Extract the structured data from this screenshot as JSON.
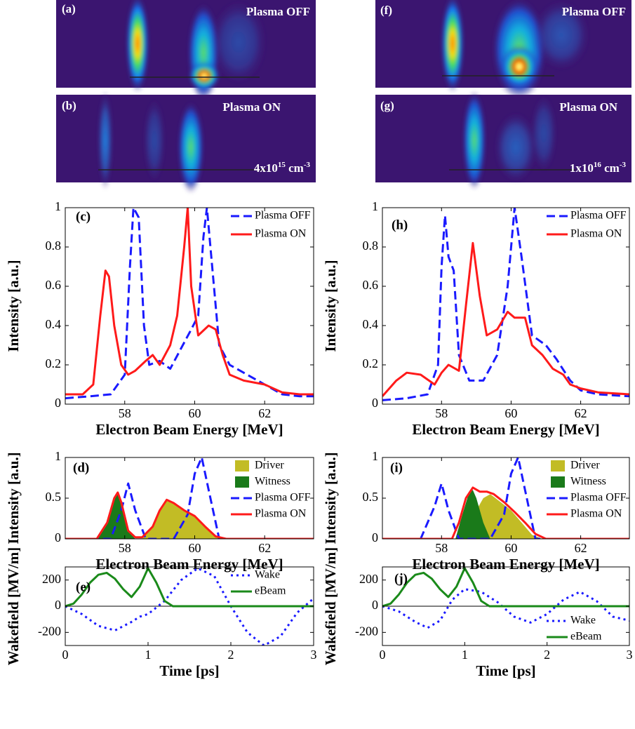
{
  "image_panels": [
    {
      "label": "(a)",
      "text": "Plasma OFF"
    },
    {
      "label": "(b)",
      "text": "Plasma ON",
      "density": {
        "base": "4x10",
        "exponent": "15",
        "unit": " cm",
        "unit_exponent": "-3"
      }
    },
    {
      "label": "(f)",
      "text": "Plasma OFF"
    },
    {
      "label": "(g)",
      "text": "Plasma ON",
      "density": {
        "base": "1x10",
        "exponent": "16",
        "unit": " cm",
        "unit_exponent": "-3"
      }
    }
  ],
  "chart_data": [
    {
      "type": "line",
      "panel_label": "(c)",
      "xlabel": "Electron Beam Energy [MeV]",
      "ylabel": "Intensity [a.u.]",
      "xlim": [
        56.3,
        63.4
      ],
      "ylim": [
        0,
        1
      ],
      "xticks": [
        58,
        60,
        62
      ],
      "yticks": [
        0,
        0.2,
        0.4,
        0.6,
        0.8,
        1
      ],
      "legend": "upper right",
      "series": [
        {
          "name": "Plasma OFF",
          "color": "#1a1aff",
          "linestyle": "dashed",
          "x": [
            56.3,
            57,
            57.6,
            58.0,
            58.15,
            58.25,
            58.4,
            58.55,
            58.7,
            59,
            59.3,
            59.6,
            59.9,
            60.1,
            60.25,
            60.35,
            60.5,
            60.7,
            61,
            61.5,
            62,
            62.5,
            63,
            63.4
          ],
          "values": [
            0.03,
            0.04,
            0.05,
            0.15,
            0.7,
            1.0,
            0.95,
            0.4,
            0.2,
            0.22,
            0.18,
            0.28,
            0.38,
            0.45,
            0.85,
            1.0,
            0.7,
            0.3,
            0.2,
            0.15,
            0.1,
            0.05,
            0.04,
            0.04
          ]
        },
        {
          "name": "Plasma ON",
          "color": "#ff1a1a",
          "linestyle": "solid",
          "x": [
            56.3,
            56.8,
            57.1,
            57.3,
            57.45,
            57.55,
            57.7,
            57.9,
            58.1,
            58.3,
            58.6,
            58.8,
            59.0,
            59.3,
            59.5,
            59.7,
            59.8,
            59.9,
            60.1,
            60.4,
            60.6,
            60.8,
            61.0,
            61.4,
            62,
            62.5,
            63,
            63.4
          ],
          "values": [
            0.05,
            0.05,
            0.1,
            0.45,
            0.68,
            0.65,
            0.4,
            0.2,
            0.15,
            0.17,
            0.22,
            0.25,
            0.2,
            0.3,
            0.45,
            0.8,
            1.0,
            0.6,
            0.35,
            0.4,
            0.38,
            0.25,
            0.15,
            0.12,
            0.1,
            0.06,
            0.05,
            0.05
          ]
        }
      ]
    },
    {
      "type": "line",
      "panel_label": "(d)",
      "xlabel": "Electron Beam Energy [MeV]",
      "ylabel": "Intensity [a.u.]",
      "xlim": [
        56.3,
        63.4
      ],
      "ylim": [
        0,
        1
      ],
      "xticks": [
        58,
        60,
        62
      ],
      "yticks": [
        0,
        0.5,
        1
      ],
      "legend": "upper right",
      "series": [
        {
          "name": "Driver",
          "color": "#c2bc25",
          "linestyle": "area",
          "x": [
            58.5,
            58.8,
            59.0,
            59.2,
            59.4,
            59.7,
            60.0,
            60.3,
            60.6,
            60.9
          ],
          "values": [
            0,
            0.15,
            0.35,
            0.48,
            0.44,
            0.35,
            0.28,
            0.15,
            0.03,
            0
          ]
        },
        {
          "name": "Witness",
          "color": "#1a7a1a",
          "linestyle": "area",
          "x": [
            57.2,
            57.5,
            57.7,
            57.8,
            57.9,
            58.1,
            58.3
          ],
          "values": [
            0,
            0.2,
            0.5,
            0.57,
            0.45,
            0.1,
            0
          ]
        },
        {
          "name": "Plasma OFF",
          "color": "#1a1aff",
          "linestyle": "dashed",
          "x": [
            56.3,
            57.6,
            57.9,
            58.1,
            58.3,
            58.6,
            59.4,
            59.8,
            60.0,
            60.2,
            60.4,
            60.7,
            63.4
          ],
          "values": [
            0,
            0,
            0.35,
            0.68,
            0.35,
            0,
            0,
            0.3,
            0.8,
            1.0,
            0.6,
            0,
            0
          ]
        },
        {
          "name": "Plasma ON",
          "color": "#ff1a1a",
          "linestyle": "solid",
          "x": [
            56.3,
            57.2,
            57.5,
            57.7,
            57.8,
            57.9,
            58.1,
            58.3,
            58.5,
            58.8,
            59.0,
            59.2,
            59.4,
            59.7,
            60.0,
            60.3,
            60.6,
            60.9,
            63.4
          ],
          "values": [
            0,
            0,
            0.2,
            0.5,
            0.57,
            0.45,
            0.1,
            0.02,
            0.02,
            0.15,
            0.35,
            0.48,
            0.44,
            0.35,
            0.28,
            0.15,
            0.03,
            0,
            0
          ]
        }
      ]
    },
    {
      "type": "line",
      "panel_label": "(e)",
      "xlabel": "Time [ps]",
      "ylabel": "Wakefield [MV/m]",
      "xlim": [
        0,
        3
      ],
      "ylim": [
        -300,
        300
      ],
      "xticks": [
        0,
        1,
        2,
        3
      ],
      "yticks": [
        -200,
        0,
        200
      ],
      "legend": "upper right",
      "series": [
        {
          "name": "Wake",
          "color": "#1a1aff",
          "linestyle": "dotted",
          "x": [
            0,
            0.2,
            0.4,
            0.6,
            0.8,
            0.9,
            1.0,
            1.2,
            1.4,
            1.6,
            1.8,
            2.0,
            2.2,
            2.4,
            2.6,
            2.8,
            3.0
          ],
          "values": [
            0,
            -60,
            -150,
            -185,
            -120,
            -80,
            -60,
            40,
            200,
            290,
            230,
            0,
            -200,
            -300,
            -230,
            -50,
            60
          ]
        },
        {
          "name": "eBeam",
          "color": "#1a8a1a",
          "linestyle": "solid",
          "x": [
            0,
            0.1,
            0.2,
            0.3,
            0.4,
            0.5,
            0.6,
            0.7,
            0.8,
            0.9,
            1.0,
            1.1,
            1.2,
            1.3,
            3
          ],
          "values": [
            0,
            20,
            90,
            180,
            240,
            255,
            210,
            130,
            70,
            150,
            290,
            180,
            40,
            0,
            0
          ]
        }
      ]
    },
    {
      "type": "line",
      "panel_label": "(h)",
      "xlabel": "Electron Beam Energy [MeV]",
      "ylabel": "Intensity [a.u.]",
      "xlim": [
        56.3,
        63.4
      ],
      "ylim": [
        0,
        1
      ],
      "xticks": [
        58,
        60,
        62
      ],
      "yticks": [
        0,
        0.2,
        0.4,
        0.6,
        0.8,
        1
      ],
      "legend": "upper right",
      "series": [
        {
          "name": "Plasma OFF",
          "color": "#1a1aff",
          "linestyle": "dashed",
          "x": [
            56.3,
            57,
            57.6,
            57.9,
            58.0,
            58.1,
            58.2,
            58.35,
            58.5,
            58.8,
            59.2,
            59.6,
            59.9,
            60.1,
            60.3,
            60.6,
            61.0,
            61.3,
            61.7,
            62,
            62.5,
            63.4
          ],
          "values": [
            0.02,
            0.03,
            0.05,
            0.2,
            0.7,
            0.96,
            0.75,
            0.68,
            0.25,
            0.12,
            0.12,
            0.25,
            0.6,
            1.0,
            0.75,
            0.35,
            0.3,
            0.23,
            0.12,
            0.07,
            0.05,
            0.04
          ]
        },
        {
          "name": "Plasma ON",
          "color": "#ff1a1a",
          "linestyle": "solid",
          "x": [
            56.3,
            56.7,
            57.0,
            57.4,
            57.8,
            58.0,
            58.2,
            58.5,
            58.7,
            58.9,
            59.1,
            59.3,
            59.6,
            59.9,
            60.1,
            60.4,
            60.6,
            60.9,
            61.2,
            61.5,
            61.7,
            62.0,
            62.5,
            63.4
          ],
          "values": [
            0.04,
            0.12,
            0.16,
            0.15,
            0.1,
            0.16,
            0.2,
            0.17,
            0.5,
            0.82,
            0.55,
            0.35,
            0.38,
            0.47,
            0.44,
            0.44,
            0.3,
            0.25,
            0.18,
            0.15,
            0.1,
            0.08,
            0.06,
            0.05
          ]
        }
      ]
    },
    {
      "type": "line",
      "panel_label": "(i)",
      "xlabel": "Electron Beam Energy [MeV]",
      "ylabel": "Intensity [a.u.]",
      "xlim": [
        56.3,
        63.4
      ],
      "ylim": [
        0,
        1
      ],
      "xticks": [
        58,
        60,
        62
      ],
      "yticks": [
        0,
        0.5,
        1
      ],
      "legend": "upper right",
      "series": [
        {
          "name": "Driver",
          "color": "#c2bc25",
          "linestyle": "area",
          "x": [
            58.7,
            59.0,
            59.2,
            59.4,
            59.7,
            60.0,
            60.3,
            60.6,
            60.9
          ],
          "values": [
            0,
            0.35,
            0.5,
            0.55,
            0.45,
            0.35,
            0.2,
            0.05,
            0
          ]
        },
        {
          "name": "Witness",
          "color": "#1a7a1a",
          "linestyle": "area",
          "x": [
            58.4,
            58.6,
            58.8,
            58.9,
            59.0,
            59.2,
            59.4
          ],
          "values": [
            0,
            0.3,
            0.58,
            0.6,
            0.5,
            0.2,
            0
          ]
        },
        {
          "name": "Plasma OFF",
          "color": "#1a1aff",
          "linestyle": "dashed",
          "x": [
            56.3,
            57.4,
            57.8,
            58.0,
            58.2,
            58.5,
            59.4,
            59.8,
            60.0,
            60.2,
            60.4,
            60.7,
            63.4
          ],
          "values": [
            0,
            0,
            0.4,
            0.68,
            0.35,
            0,
            0,
            0.3,
            0.8,
            1.0,
            0.6,
            0,
            0
          ]
        },
        {
          "name": "Plasma ON",
          "color": "#ff1a1a",
          "linestyle": "solid",
          "x": [
            56.3,
            58.3,
            58.5,
            58.7,
            58.9,
            59.1,
            59.3,
            59.5,
            59.8,
            60.1,
            60.4,
            60.7,
            61.0,
            63.4
          ],
          "values": [
            0,
            0,
            0.2,
            0.5,
            0.63,
            0.58,
            0.58,
            0.55,
            0.45,
            0.33,
            0.2,
            0.06,
            0,
            0
          ]
        }
      ]
    },
    {
      "type": "line",
      "panel_label": "(j)",
      "xlabel": "Time [ps]",
      "ylabel": "Wakefield [MV/m]",
      "xlim": [
        0,
        3
      ],
      "ylim": [
        -300,
        300
      ],
      "xticks": [
        0,
        1,
        2,
        3
      ],
      "yticks": [
        -200,
        0,
        200
      ],
      "legend": "lower right",
      "series": [
        {
          "name": "Wake",
          "color": "#1a1aff",
          "linestyle": "dotted",
          "x": [
            0,
            0.2,
            0.4,
            0.55,
            0.7,
            0.85,
            1.0,
            1.2,
            1.4,
            1.6,
            1.8,
            2.0,
            2.2,
            2.4,
            2.6,
            2.8,
            3.0
          ],
          "values": [
            0,
            -40,
            -120,
            -165,
            -110,
            50,
            130,
            110,
            30,
            -80,
            -125,
            -60,
            50,
            110,
            40,
            -80,
            -110
          ]
        },
        {
          "name": "eBeam",
          "color": "#1a8a1a",
          "linestyle": "solid",
          "x": [
            0,
            0.1,
            0.2,
            0.3,
            0.4,
            0.5,
            0.6,
            0.7,
            0.8,
            0.9,
            1.0,
            1.1,
            1.2,
            1.3,
            3
          ],
          "values": [
            0,
            20,
            90,
            180,
            240,
            255,
            210,
            130,
            70,
            150,
            290,
            180,
            40,
            0,
            0
          ]
        }
      ]
    }
  ]
}
